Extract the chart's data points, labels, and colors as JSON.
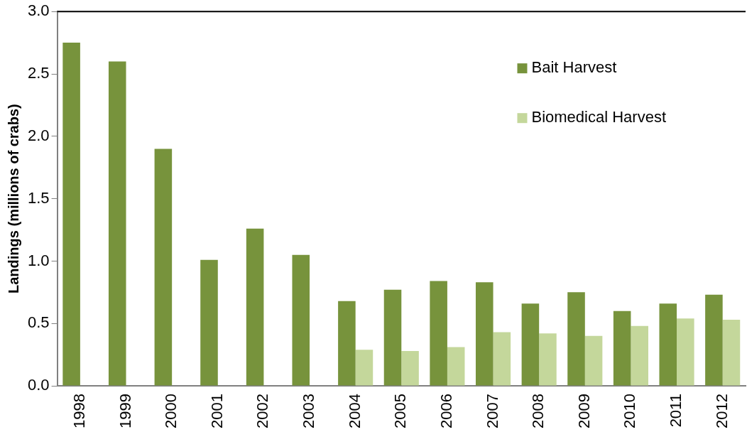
{
  "chart_data": {
    "type": "bar",
    "ylabel": "Landings (millions of crabs)",
    "categories": [
      "1998",
      "1999",
      "2000",
      "2001",
      "2002",
      "2003",
      "2004",
      "2005",
      "2006",
      "2007",
      "2008",
      "2009",
      "2010",
      "2011",
      "2012"
    ],
    "series": [
      {
        "name": "Bait Harvest",
        "color": "#77933c",
        "values": [
          2.75,
          2.6,
          1.9,
          1.01,
          1.26,
          1.05,
          0.68,
          0.77,
          0.84,
          0.83,
          0.66,
          0.75,
          0.6,
          0.66,
          0.73
        ]
      },
      {
        "name": "Biomedical Harvest",
        "color": "#c4d79b",
        "values": [
          null,
          null,
          null,
          null,
          null,
          null,
          0.29,
          0.28,
          0.31,
          0.43,
          0.42,
          0.4,
          0.48,
          0.54,
          0.53
        ]
      }
    ],
    "ylim": [
      0,
      3.0
    ],
    "yticks": [
      {
        "value": 0,
        "label": "0.0"
      },
      {
        "value": 0.5,
        "label": "0.5"
      },
      {
        "value": 1,
        "label": "1.0"
      },
      {
        "value": 1.5,
        "label": "1.5"
      },
      {
        "value": 2,
        "label": "2.0"
      },
      {
        "value": 2.5,
        "label": "2.5"
      },
      {
        "value": 3,
        "label": "3.0"
      }
    ],
    "grid": false,
    "legend": "top right"
  }
}
